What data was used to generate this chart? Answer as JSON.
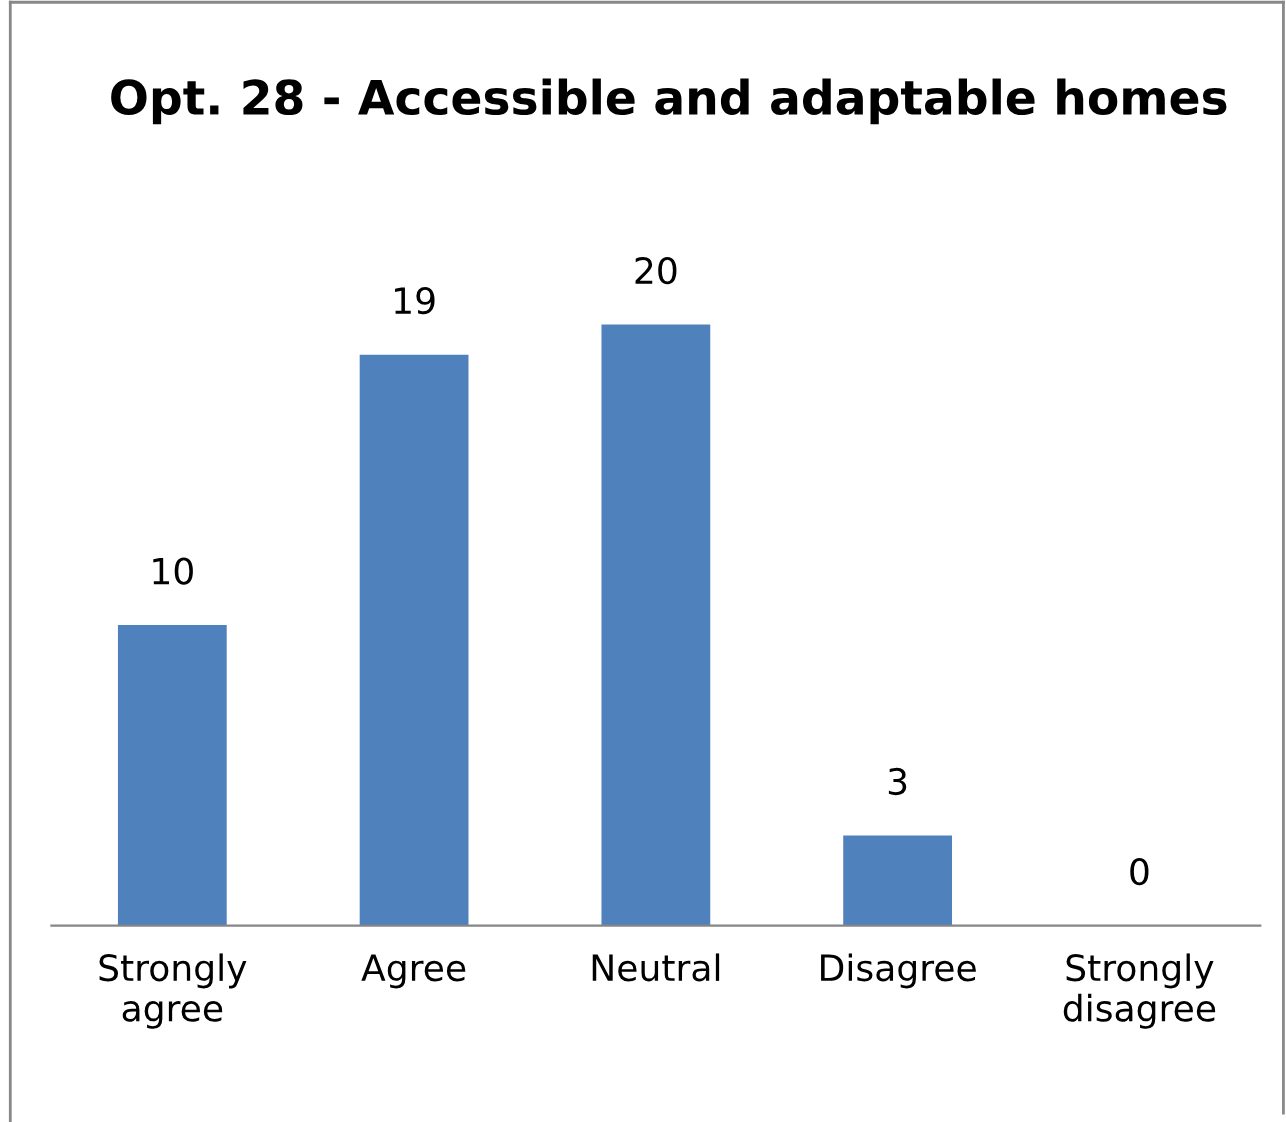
{
  "chart_data": {
    "type": "bar",
    "title": "Opt. 28 - Accessible and adaptable homes",
    "categories": [
      "Strongly\nagree",
      "Agree",
      "Neutral",
      "Disagree",
      "Strongly\ndisagree"
    ],
    "values": [
      10,
      19,
      20,
      3,
      0
    ],
    "color": "#4f81bd",
    "data_labels": true
  }
}
